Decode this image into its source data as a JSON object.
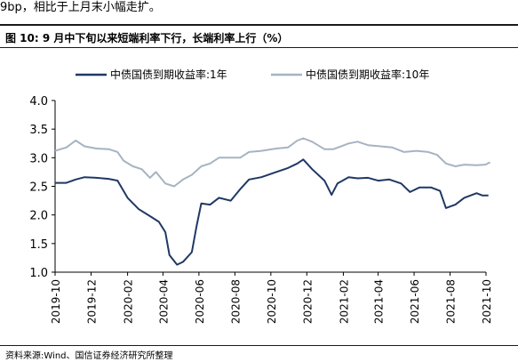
{
  "header": {
    "top_text": "9bp，相比于上月末小幅走扩。",
    "figure_title": "图 10:  9 月中下旬以来短端利率下行，长端利率上行（%）",
    "source": "资料来源:Wind、国信证券经济研究所整理"
  },
  "colors": {
    "series_1y": "#1f3864",
    "series_10y": "#a6b3c2",
    "axis": "#000000",
    "rule": "#1a1a1a"
  },
  "chart_data": {
    "type": "line",
    "title": "9 月中下旬以来短端利率下行，长端利率上行（%）",
    "xlabel": "",
    "ylabel": "",
    "ylim": [
      1.0,
      4.0
    ],
    "yticks": [
      "1.0",
      "1.5",
      "2.0",
      "2.5",
      "3.0",
      "3.5",
      "4.0"
    ],
    "xlim": [
      "2019-10",
      "2021-10"
    ],
    "xticks": [
      "2019-10",
      "2019-12",
      "2020-02",
      "2020-04",
      "2020-06",
      "2020-08",
      "2020-10",
      "2020-12",
      "2021-02",
      "2021-04",
      "2021-06",
      "2021-08",
      "2021-10"
    ],
    "grid": false,
    "legend_position": "top",
    "series": [
      {
        "name": "中债国债到期收益率:1年",
        "points": [
          [
            "2019-10-01",
            2.56
          ],
          [
            "2019-10-20",
            2.56
          ],
          [
            "2019-11-05",
            2.62
          ],
          [
            "2019-11-20",
            2.66
          ],
          [
            "2019-12-10",
            2.65
          ],
          [
            "2019-12-31",
            2.63
          ],
          [
            "2020-01-15",
            2.6
          ],
          [
            "2020-02-01",
            2.3
          ],
          [
            "2020-02-20",
            2.1
          ],
          [
            "2020-03-10",
            1.98
          ],
          [
            "2020-03-25",
            1.88
          ],
          [
            "2020-04-05",
            1.7
          ],
          [
            "2020-04-12",
            1.3
          ],
          [
            "2020-04-25",
            1.13
          ],
          [
            "2020-05-05",
            1.18
          ],
          [
            "2020-05-20",
            1.35
          ],
          [
            "2020-05-28",
            1.8
          ],
          [
            "2020-06-05",
            2.2
          ],
          [
            "2020-06-20",
            2.18
          ],
          [
            "2020-07-05",
            2.3
          ],
          [
            "2020-07-25",
            2.25
          ],
          [
            "2020-08-10",
            2.45
          ],
          [
            "2020-08-25",
            2.62
          ],
          [
            "2020-09-15",
            2.66
          ],
          [
            "2020-10-10",
            2.75
          ],
          [
            "2020-10-30",
            2.82
          ],
          [
            "2020-11-15",
            2.9
          ],
          [
            "2020-11-25",
            2.97
          ],
          [
            "2020-12-10",
            2.8
          ],
          [
            "2020-12-31",
            2.6
          ],
          [
            "2021-01-12",
            2.35
          ],
          [
            "2021-01-22",
            2.55
          ],
          [
            "2021-02-10",
            2.66
          ],
          [
            "2021-02-25",
            2.64
          ],
          [
            "2021-03-15",
            2.65
          ],
          [
            "2021-04-01",
            2.6
          ],
          [
            "2021-04-20",
            2.62
          ],
          [
            "2021-05-10",
            2.55
          ],
          [
            "2021-05-25",
            2.4
          ],
          [
            "2021-06-10",
            2.48
          ],
          [
            "2021-06-30",
            2.48
          ],
          [
            "2021-07-15",
            2.42
          ],
          [
            "2021-07-25",
            2.12
          ],
          [
            "2021-08-10",
            2.18
          ],
          [
            "2021-08-25",
            2.3
          ],
          [
            "2021-09-15",
            2.38
          ],
          [
            "2021-09-25",
            2.34
          ],
          [
            "2021-10-05",
            2.34
          ]
        ]
      },
      {
        "name": "中债国债到期收益率:10年",
        "points": [
          [
            "2019-10-01",
            3.12
          ],
          [
            "2019-10-20",
            3.18
          ],
          [
            "2019-11-05",
            3.3
          ],
          [
            "2019-11-20",
            3.2
          ],
          [
            "2019-12-10",
            3.16
          ],
          [
            "2019-12-31",
            3.15
          ],
          [
            "2020-01-15",
            3.1
          ],
          [
            "2020-01-25",
            2.95
          ],
          [
            "2020-02-10",
            2.85
          ],
          [
            "2020-02-25",
            2.8
          ],
          [
            "2020-03-10",
            2.65
          ],
          [
            "2020-03-20",
            2.75
          ],
          [
            "2020-04-05",
            2.55
          ],
          [
            "2020-04-20",
            2.5
          ],
          [
            "2020-05-05",
            2.62
          ],
          [
            "2020-05-20",
            2.7
          ],
          [
            "2020-06-05",
            2.85
          ],
          [
            "2020-06-20",
            2.9
          ],
          [
            "2020-07-05",
            3.0
          ],
          [
            "2020-07-20",
            3.0
          ],
          [
            "2020-08-10",
            3.0
          ],
          [
            "2020-08-25",
            3.1
          ],
          [
            "2020-09-15",
            3.12
          ],
          [
            "2020-10-10",
            3.16
          ],
          [
            "2020-10-30",
            3.18
          ],
          [
            "2020-11-15",
            3.3
          ],
          [
            "2020-11-25",
            3.34
          ],
          [
            "2020-12-10",
            3.28
          ],
          [
            "2020-12-31",
            3.15
          ],
          [
            "2021-01-15",
            3.15
          ],
          [
            "2021-02-10",
            3.25
          ],
          [
            "2021-02-25",
            3.28
          ],
          [
            "2021-03-15",
            3.22
          ],
          [
            "2021-04-05",
            3.2
          ],
          [
            "2021-04-25",
            3.18
          ],
          [
            "2021-05-15",
            3.1
          ],
          [
            "2021-06-05",
            3.12
          ],
          [
            "2021-06-25",
            3.1
          ],
          [
            "2021-07-10",
            3.05
          ],
          [
            "2021-07-25",
            2.9
          ],
          [
            "2021-08-10",
            2.85
          ],
          [
            "2021-08-25",
            2.88
          ],
          [
            "2021-09-15",
            2.87
          ],
          [
            "2021-09-30",
            2.88
          ],
          [
            "2021-10-08",
            2.92
          ]
        ]
      }
    ]
  }
}
